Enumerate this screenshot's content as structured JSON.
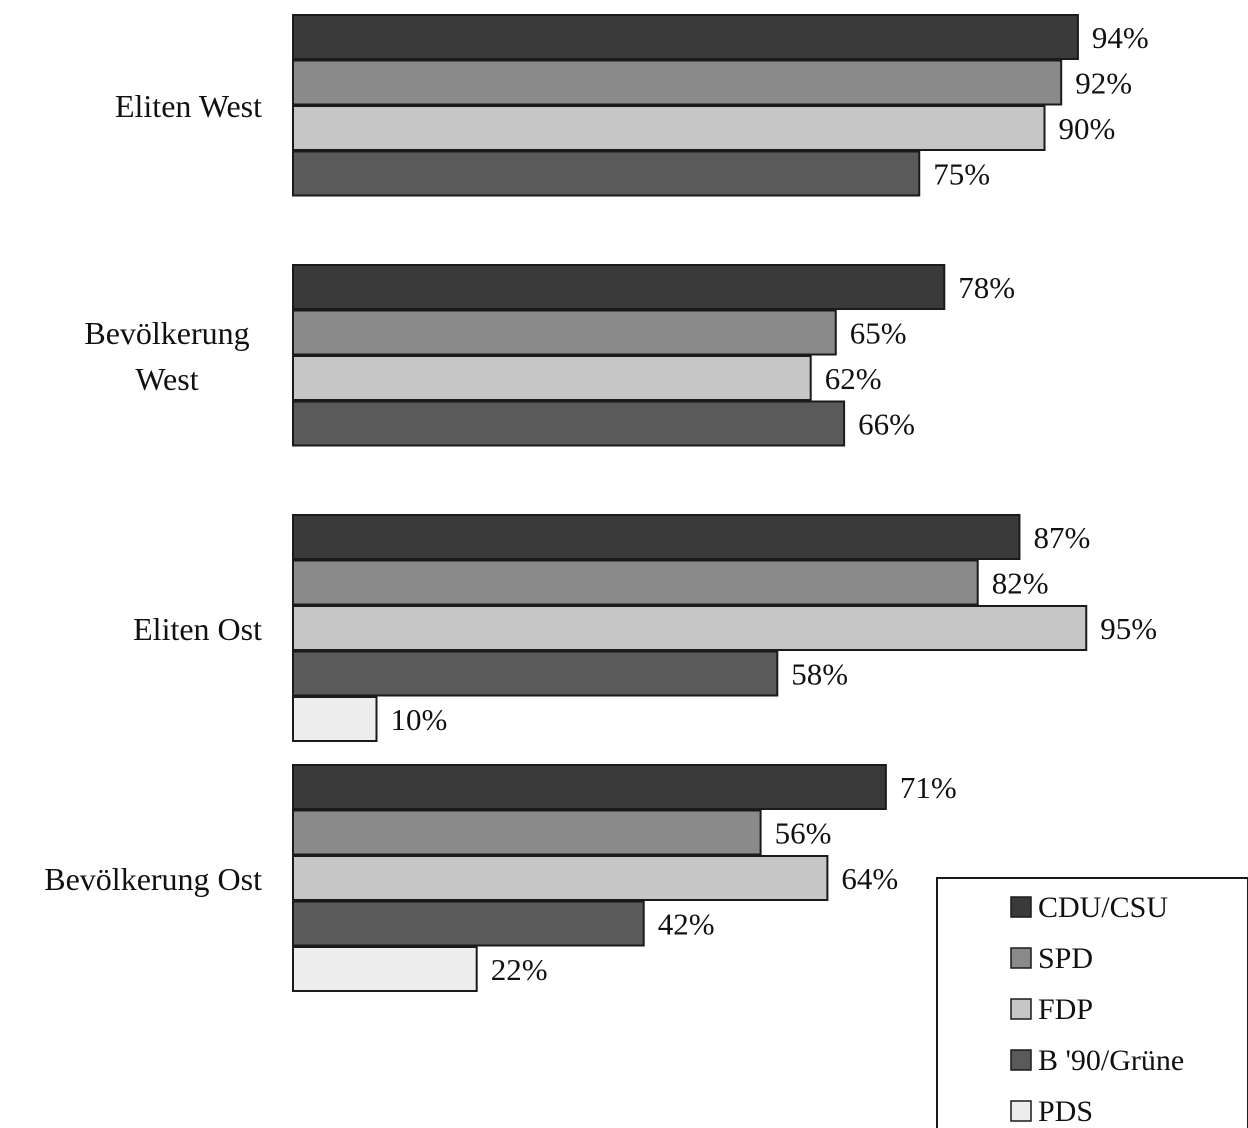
{
  "chart_data": {
    "type": "bar",
    "orientation": "horizontal",
    "title": "",
    "xlabel": "",
    "ylabel": "",
    "xlim": [
      0,
      100
    ],
    "grid": false,
    "legend_position": "bottom-right",
    "value_suffix": "%",
    "categories": [
      {
        "label_lines": [
          "Eliten West"
        ]
      },
      {
        "label_lines": [
          "Bevölkerung",
          "West"
        ]
      },
      {
        "label_lines": [
          "Eliten Ost"
        ]
      },
      {
        "label_lines": [
          "Bevölkerung Ost"
        ]
      }
    ],
    "series": [
      {
        "name": "CDU/CSU",
        "color": "#3a3a3a",
        "values": [
          94,
          78,
          87,
          71
        ]
      },
      {
        "name": "SPD",
        "color": "#8a8a8a",
        "values": [
          92,
          65,
          82,
          56
        ]
      },
      {
        "name": "FDP",
        "color": "#c6c6c6",
        "values": [
          90,
          62,
          95,
          64
        ]
      },
      {
        "name": "B '90/Grüne",
        "color": "#5a5a5a",
        "values": [
          75,
          66,
          58,
          42
        ]
      },
      {
        "name": "PDS",
        "color": "#ededed",
        "values": [
          null,
          null,
          10,
          22
        ]
      }
    ]
  }
}
